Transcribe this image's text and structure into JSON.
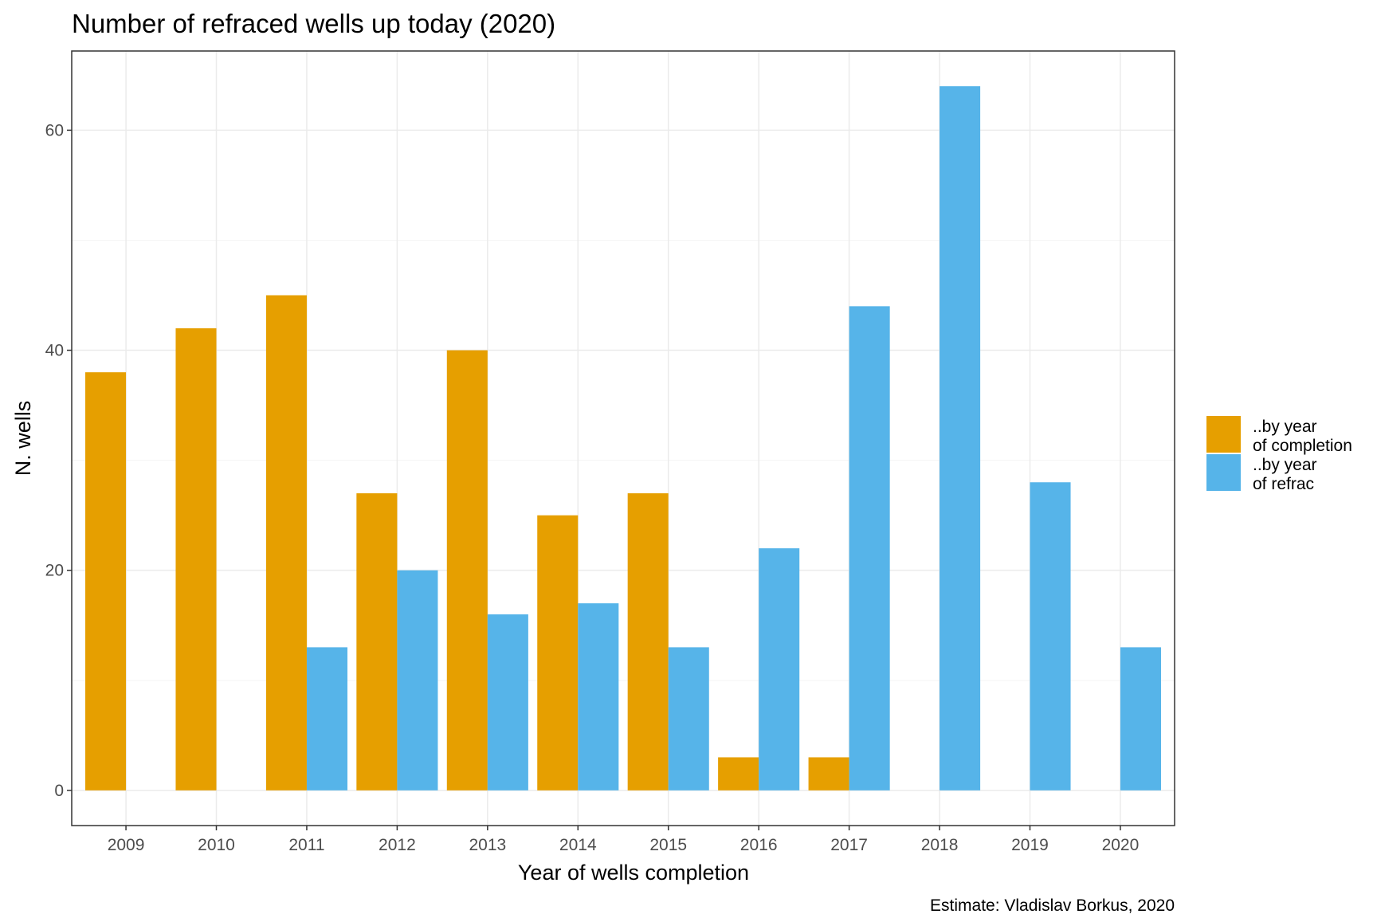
{
  "chart_data": {
    "type": "bar",
    "title": "Number of refraced wells up today (2020)",
    "xlabel": "Year of wells completion",
    "ylabel": "N. wells",
    "caption": "Estimate: Vladislav Borkus, 2020",
    "categories": [
      "2009",
      "2010",
      "2011",
      "2012",
      "2013",
      "2014",
      "2015",
      "2016",
      "2017",
      "2018",
      "2019",
      "2020"
    ],
    "series": [
      {
        "name": "..by year\nof completion",
        "name_lines": [
          "..by year",
          "of completion"
        ],
        "color": "#E69F00",
        "values": [
          38,
          42,
          45,
          27,
          40,
          25,
          27,
          3,
          3,
          0,
          0,
          0
        ]
      },
      {
        "name": "..by year\nof refrac",
        "name_lines": [
          "..by year",
          "of refrac"
        ],
        "color": "#56B4E9",
        "values": [
          0,
          0,
          13,
          20,
          16,
          17,
          13,
          22,
          44,
          64,
          28,
          13
        ]
      }
    ],
    "yticks": [
      0,
      20,
      40,
      60
    ],
    "ylim": [
      -3.2,
      67.2
    ],
    "grid": true,
    "legend_position": "right",
    "colors": {
      "panel_border": "#333333",
      "grid_major": "#ebebeb",
      "grid_minor": "#f5f5f5",
      "tick_text": "#4d4d4d"
    }
  }
}
